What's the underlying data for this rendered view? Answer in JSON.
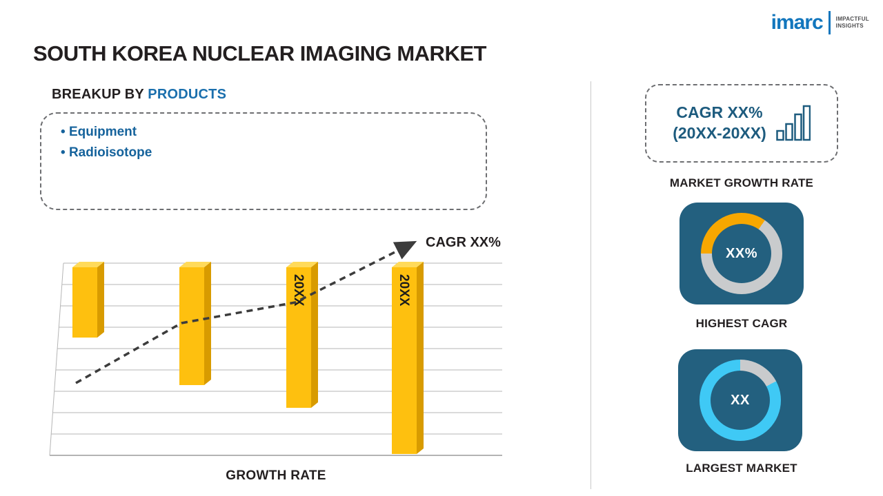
{
  "header": {
    "title": "SOUTH KOREA NUCLEAR IMAGING MARKET",
    "logo": {
      "brand": "imarc",
      "tagline_line1": "IMPACTFUL",
      "tagline_line2": "INSIGHTS"
    }
  },
  "breakup": {
    "heading_prefix": "BREAKUP BY ",
    "heading_highlight": "PRODUCTS",
    "items": [
      "Equipment",
      "Radioisotope"
    ]
  },
  "chart": {
    "cagr_annotation": "CAGR XX%",
    "xlabel": "GROWTH RATE",
    "bar_labels": [
      "",
      "",
      "20XX",
      "20XX"
    ],
    "bar_color": "#FEC00F",
    "bar_top_color": "#FFDA5A",
    "bar_side_color": "#D89B00"
  },
  "chart_data": {
    "type": "bar",
    "categories": [
      "",
      "",
      "20XX",
      "20XX"
    ],
    "values": [
      102,
      171,
      204,
      271
    ],
    "values_note": "relative bar heights; numeric values are placeholders (XX) in source image",
    "title": "",
    "xlabel": "GROWTH RATE",
    "ylabel": "",
    "grid": true,
    "annotations": [
      "CAGR XX%"
    ],
    "trend": "rising dashed arrow across bars"
  },
  "right_panel": {
    "cagr_box": {
      "line1": "CAGR XX%",
      "line2": "(20XX-20XX)"
    },
    "market_growth_rate_label": "MARKET GROWTH RATE",
    "highest_cagr": {
      "value": "XX%",
      "label": "HIGHEST CAGR",
      "accent": "#F7A700"
    },
    "largest_market": {
      "value": "XX",
      "label": "LARGEST MARKET",
      "accent": "#3FC9F5"
    }
  },
  "colors": {
    "card_bg": "#23607F",
    "ring_base": "#C9CBCD",
    "brand_blue": "#1276BD",
    "heading_blue": "#1A6FAD",
    "item_blue": "#16639C",
    "text_dark": "#231F20"
  }
}
